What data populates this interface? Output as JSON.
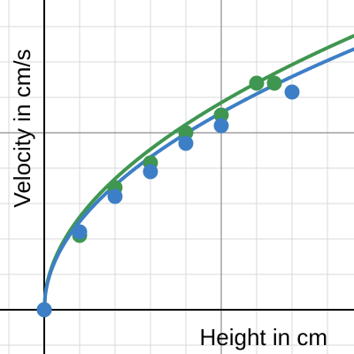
{
  "chart_data": {
    "type": "scatter",
    "title": "",
    "xlabel": "Height in cm",
    "ylabel": "Velocity in cm/s",
    "xlim": [
      -2.5,
      17.5
    ],
    "ylim": [
      -2.5,
      17.5
    ],
    "grid": true,
    "major_grid_step": 10,
    "minor_grid_step": 2,
    "tick_labels_shown": false,
    "legend": "none",
    "series": [
      {
        "color": "#3d7fc6",
        "points": [
          [
            0,
            0
          ],
          [
            2,
            4.4
          ],
          [
            4,
            6.4
          ],
          [
            6,
            7.8
          ],
          [
            8,
            9.4
          ],
          [
            10,
            10.4
          ],
          [
            14,
            12.3
          ]
        ],
        "fit": {
          "form": "power",
          "a": 3.52,
          "b": 0.5
        }
      },
      {
        "color": "#3f9650",
        "points": [
          [
            0,
            0
          ],
          [
            2,
            4.2
          ],
          [
            4,
            6.9
          ],
          [
            6,
            8.3
          ],
          [
            8,
            10.0
          ],
          [
            10,
            11.0
          ],
          [
            12,
            12.8
          ],
          [
            13,
            12.8
          ]
        ],
        "fit": {
          "form": "power",
          "a": 3.7,
          "b": 0.5
        }
      }
    ]
  }
}
